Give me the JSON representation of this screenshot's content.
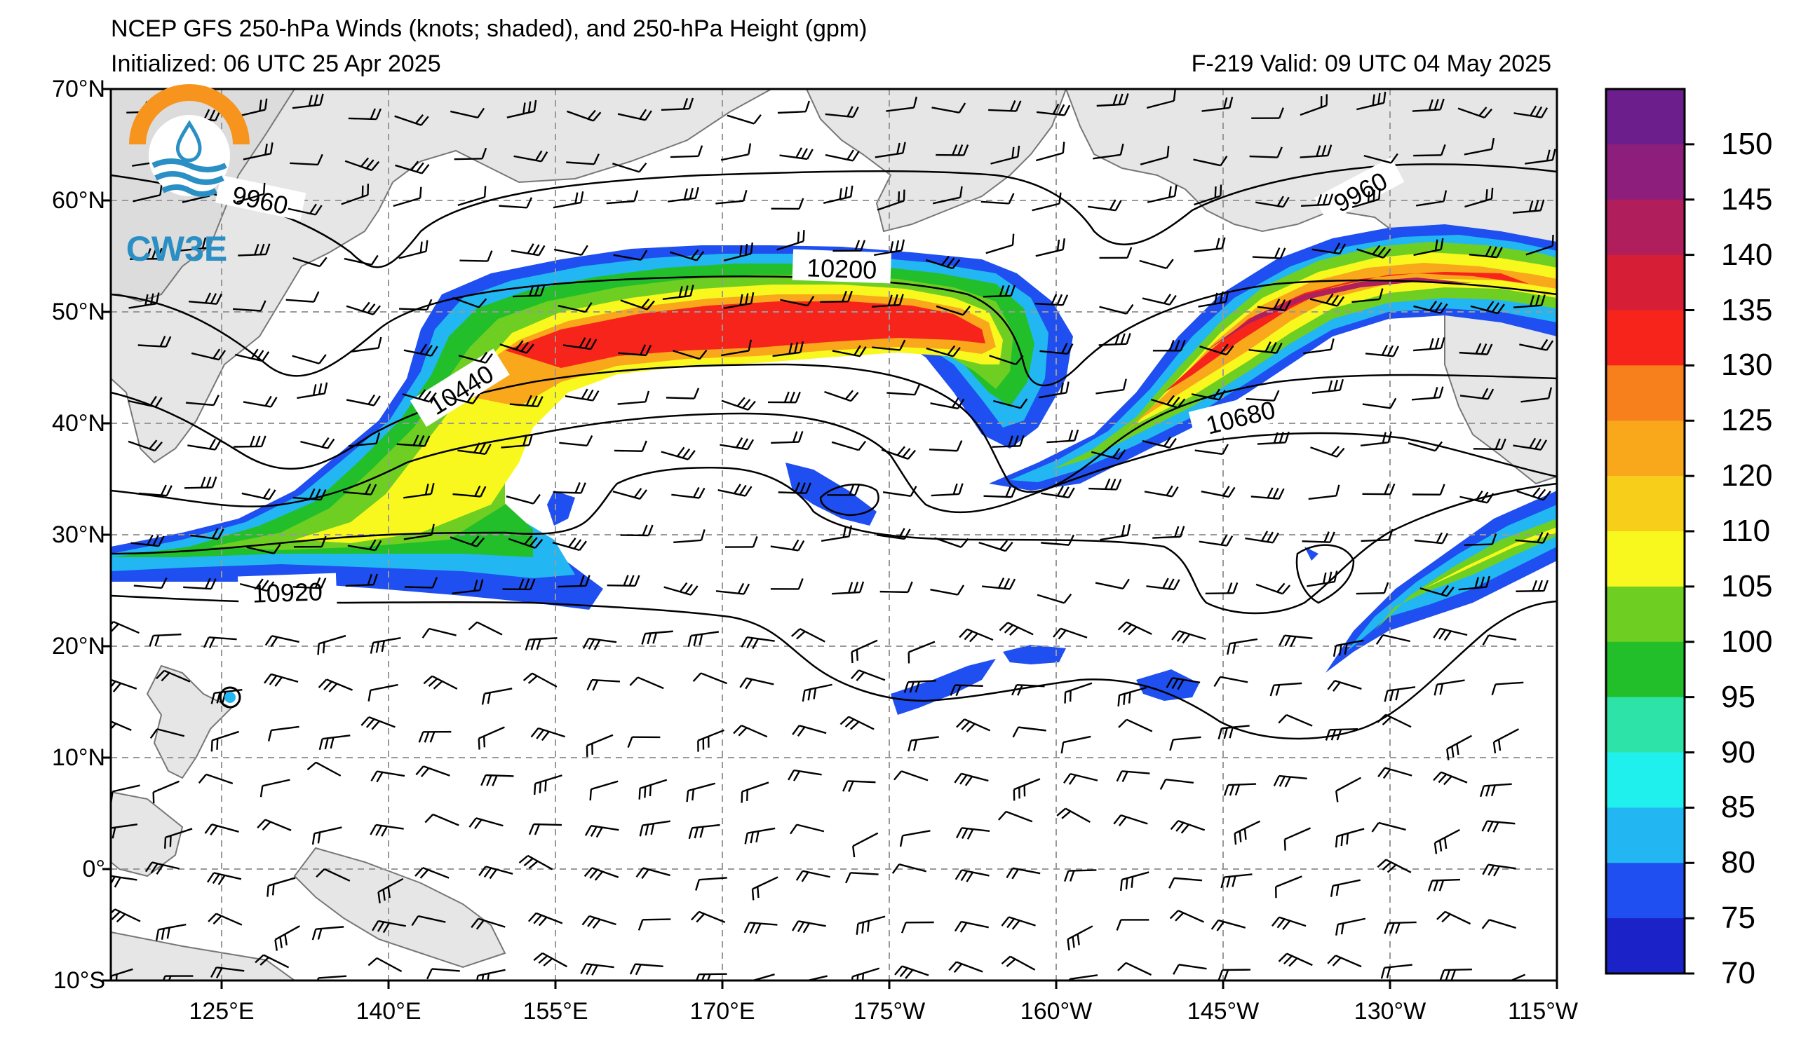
{
  "header": {
    "title": "NCEP GFS 250-hPa Winds (knots; shaded), and 250-hPa Height (gpm)",
    "initialized": "Initialized: 06 UTC 25 Apr 2025",
    "valid": "F-219  Valid: 09 UTC 04 May 2025"
  },
  "logo": {
    "text": "CW3E",
    "colors": {
      "ring": "#f7941d",
      "wave": "#2a8fc4"
    }
  },
  "lat_labels": [
    "70°N",
    "60°N",
    "50°N",
    "40°N",
    "30°N",
    "20°N",
    "10°N",
    "0°",
    "10°S"
  ],
  "lon_labels": [
    "125°E",
    "140°E",
    "155°E",
    "170°E",
    "175°W",
    "160°W",
    "145°W",
    "130°W",
    "115°W"
  ],
  "contour_labels": [
    "9960",
    "10200",
    "10440",
    "10680",
    "10920",
    "9960"
  ],
  "colorbar": {
    "ticks": [
      "70",
      "75",
      "80",
      "85",
      "90",
      "95",
      "100",
      "105",
      "110",
      "120",
      "125",
      "130",
      "135",
      "140",
      "145",
      "150"
    ],
    "colors": [
      "#1b22c8",
      "#1f4ff0",
      "#22b7f2",
      "#1ff0ee",
      "#2ee3a8",
      "#22bf2a",
      "#6ecf22",
      "#f8f81e",
      "#f7cf1a",
      "#f8a81a",
      "#f7801c",
      "#f7241c",
      "#d61e36",
      "#b01e5c",
      "#8e1e7c",
      "#6c1e8c"
    ]
  }
}
